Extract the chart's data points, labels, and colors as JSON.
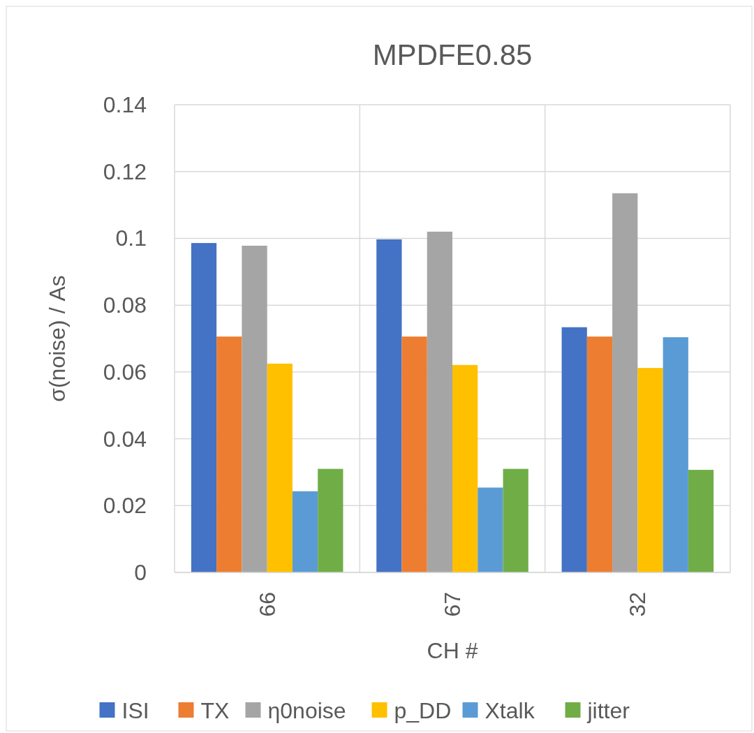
{
  "chart_data": {
    "type": "bar",
    "title": "MPDFE0.85",
    "xlabel": "CH #",
    "ylabel": "σ(noise) / As",
    "categories": [
      "66",
      "67",
      "32"
    ],
    "series": [
      {
        "name": "ISI",
        "color": "#4472c4",
        "values": [
          0.0986,
          0.0997,
          0.0734
        ]
      },
      {
        "name": "TX",
        "color": "#ed7d31",
        "values": [
          0.0706,
          0.0706,
          0.0706
        ]
      },
      {
        "name": "η0noise",
        "color": "#a5a5a5",
        "values": [
          0.0978,
          0.102,
          0.1135
        ]
      },
      {
        "name": "p_DD",
        "color": "#ffc000",
        "values": [
          0.0625,
          0.0621,
          0.0612
        ]
      },
      {
        "name": "Xtalk",
        "color": "#5b9bd5",
        "values": [
          0.0243,
          0.0254,
          0.0704
        ]
      },
      {
        "name": "jitter",
        "color": "#70ad47",
        "values": [
          0.031,
          0.031,
          0.0307
        ]
      }
    ],
    "ylim": [
      0,
      0.14
    ],
    "yticks": [
      0,
      0.02,
      0.04,
      0.06,
      0.08,
      0.1,
      0.12,
      0.14
    ],
    "grid": true,
    "legend": "bottom"
  }
}
